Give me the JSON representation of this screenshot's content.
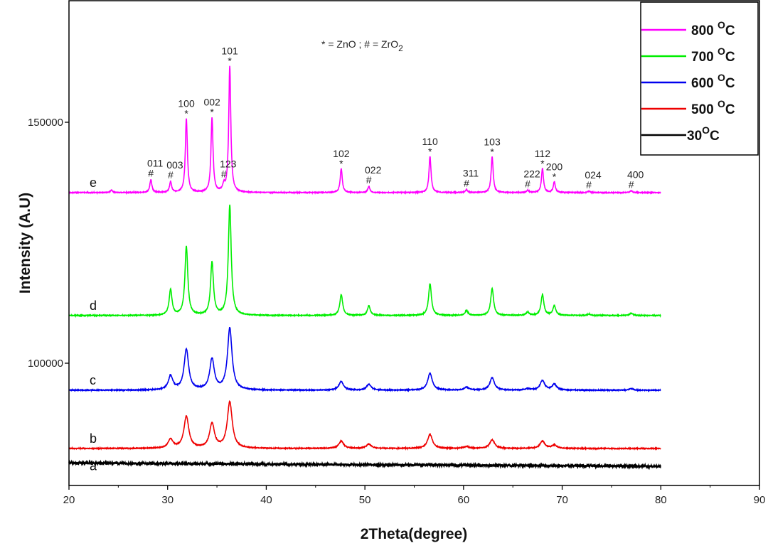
{
  "chart_data": {
    "type": "line",
    "title": "",
    "xlabel": "2Theta(degree)",
    "ylabel": "Intensity (A.U)",
    "xlim": [
      20,
      90
    ],
    "ylim": [
      74630,
      175370
    ],
    "xticks": [
      20,
      30,
      40,
      50,
      60,
      70,
      80,
      90
    ],
    "yticks": [
      100000,
      150000
    ],
    "note": "* = ZnO ; # = ZrO",
    "note_sub": "2",
    "legend_position": "top-right",
    "series": [
      {
        "name": "800 °C",
        "legend": "800",
        "sup": "O",
        "unit": "C",
        "curve_label": "e",
        "color": "#ff00ff",
        "x_range": [
          20,
          80
        ],
        "baseline": 135400,
        "fwhm": 0.25,
        "peaks": [
          [
            24.3,
            500
          ],
          [
            28.3,
            2650
          ],
          [
            30.3,
            2200
          ],
          [
            31.9,
            15300
          ],
          [
            34.5,
            15500
          ],
          [
            35.7,
            1300
          ],
          [
            36.3,
            26200
          ],
          [
            47.6,
            5000
          ],
          [
            50.4,
            1300
          ],
          [
            56.6,
            7500
          ],
          [
            60.3,
            600
          ],
          [
            62.9,
            7400
          ],
          [
            66.5,
            500
          ],
          [
            68.0,
            5000
          ],
          [
            69.2,
            2200
          ],
          [
            72.7,
            300
          ],
          [
            77.0,
            400
          ]
        ]
      },
      {
        "name": "700 °C",
        "legend": "700",
        "sup": "O",
        "unit": "C",
        "curve_label": "d",
        "color": "#00ee00",
        "x_range": [
          20,
          80
        ],
        "baseline": 109900,
        "fwhm": 0.35,
        "peaks": [
          [
            30.3,
            5300
          ],
          [
            31.9,
            14300
          ],
          [
            34.5,
            11000
          ],
          [
            36.3,
            22800
          ],
          [
            47.6,
            4300
          ],
          [
            50.4,
            2000
          ],
          [
            56.6,
            6600
          ],
          [
            60.3,
            1000
          ],
          [
            62.9,
            5600
          ],
          [
            66.5,
            700
          ],
          [
            68.0,
            4300
          ],
          [
            69.2,
            2000
          ],
          [
            72.7,
            300
          ],
          [
            77.0,
            500
          ]
        ]
      },
      {
        "name": "600 °C",
        "legend": "600",
        "sup": "O",
        "unit": "C",
        "curve_label": "c",
        "color": "#0000ee",
        "x_range": [
          20,
          80
        ],
        "baseline": 94400,
        "fwhm": 0.55,
        "peaks": [
          [
            30.3,
            2900
          ],
          [
            31.9,
            8400
          ],
          [
            34.5,
            6400
          ],
          [
            36.3,
            12800
          ],
          [
            47.6,
            1800
          ],
          [
            50.4,
            1200
          ],
          [
            56.6,
            3500
          ],
          [
            60.3,
            600
          ],
          [
            62.9,
            2600
          ],
          [
            66.5,
            300
          ],
          [
            68.0,
            2000
          ],
          [
            69.2,
            1200
          ],
          [
            77.0,
            300
          ]
        ]
      },
      {
        "name": "500 °C",
        "legend": "500",
        "sup": "O",
        "unit": "C",
        "curve_label": "b",
        "color": "#ee0000",
        "x_range": [
          20,
          80
        ],
        "baseline": 82300,
        "fwhm": 0.6,
        "peaks": [
          [
            30.3,
            1800
          ],
          [
            31.9,
            6600
          ],
          [
            34.5,
            5100
          ],
          [
            36.3,
            9600
          ],
          [
            47.6,
            1500
          ],
          [
            50.4,
            900
          ],
          [
            56.6,
            2900
          ],
          [
            60.3,
            400
          ],
          [
            62.9,
            1800
          ],
          [
            68.0,
            1500
          ],
          [
            69.2,
            700
          ]
        ]
      },
      {
        "name": "30 °C",
        "legend": "30",
        "sup": "O",
        "unit": "C",
        "curve_label": "a",
        "color": "#000000",
        "x_range": [
          20,
          80
        ],
        "baseline": 79300,
        "baseline_end": 78600,
        "fwhm": 1,
        "peaks": []
      }
    ],
    "annotations": [
      {
        "x": 28.3,
        "label": "011",
        "symbol": "#"
      },
      {
        "x": 30.3,
        "label": "003",
        "symbol": "#"
      },
      {
        "x": 31.9,
        "label": "100",
        "symbol": "*"
      },
      {
        "x": 34.5,
        "label": "002",
        "symbol": "*"
      },
      {
        "x": 35.7,
        "label": "123",
        "symbol": "#"
      },
      {
        "x": 36.3,
        "label": "101",
        "symbol": "*"
      },
      {
        "x": 47.6,
        "label": "102",
        "symbol": "*"
      },
      {
        "x": 50.4,
        "label": "022",
        "symbol": "#"
      },
      {
        "x": 56.6,
        "label": "110",
        "symbol": "*"
      },
      {
        "x": 60.3,
        "label": "311",
        "symbol": "#"
      },
      {
        "x": 62.9,
        "label": "103",
        "symbol": "*"
      },
      {
        "x": 66.5,
        "label": "222",
        "symbol": "#"
      },
      {
        "x": 68.0,
        "label": "112",
        "symbol": "*"
      },
      {
        "x": 69.2,
        "label": "200",
        "symbol": "*"
      },
      {
        "x": 72.7,
        "label": "024",
        "symbol": "#"
      },
      {
        "x": 77.0,
        "label": "400",
        "symbol": "#"
      }
    ]
  }
}
